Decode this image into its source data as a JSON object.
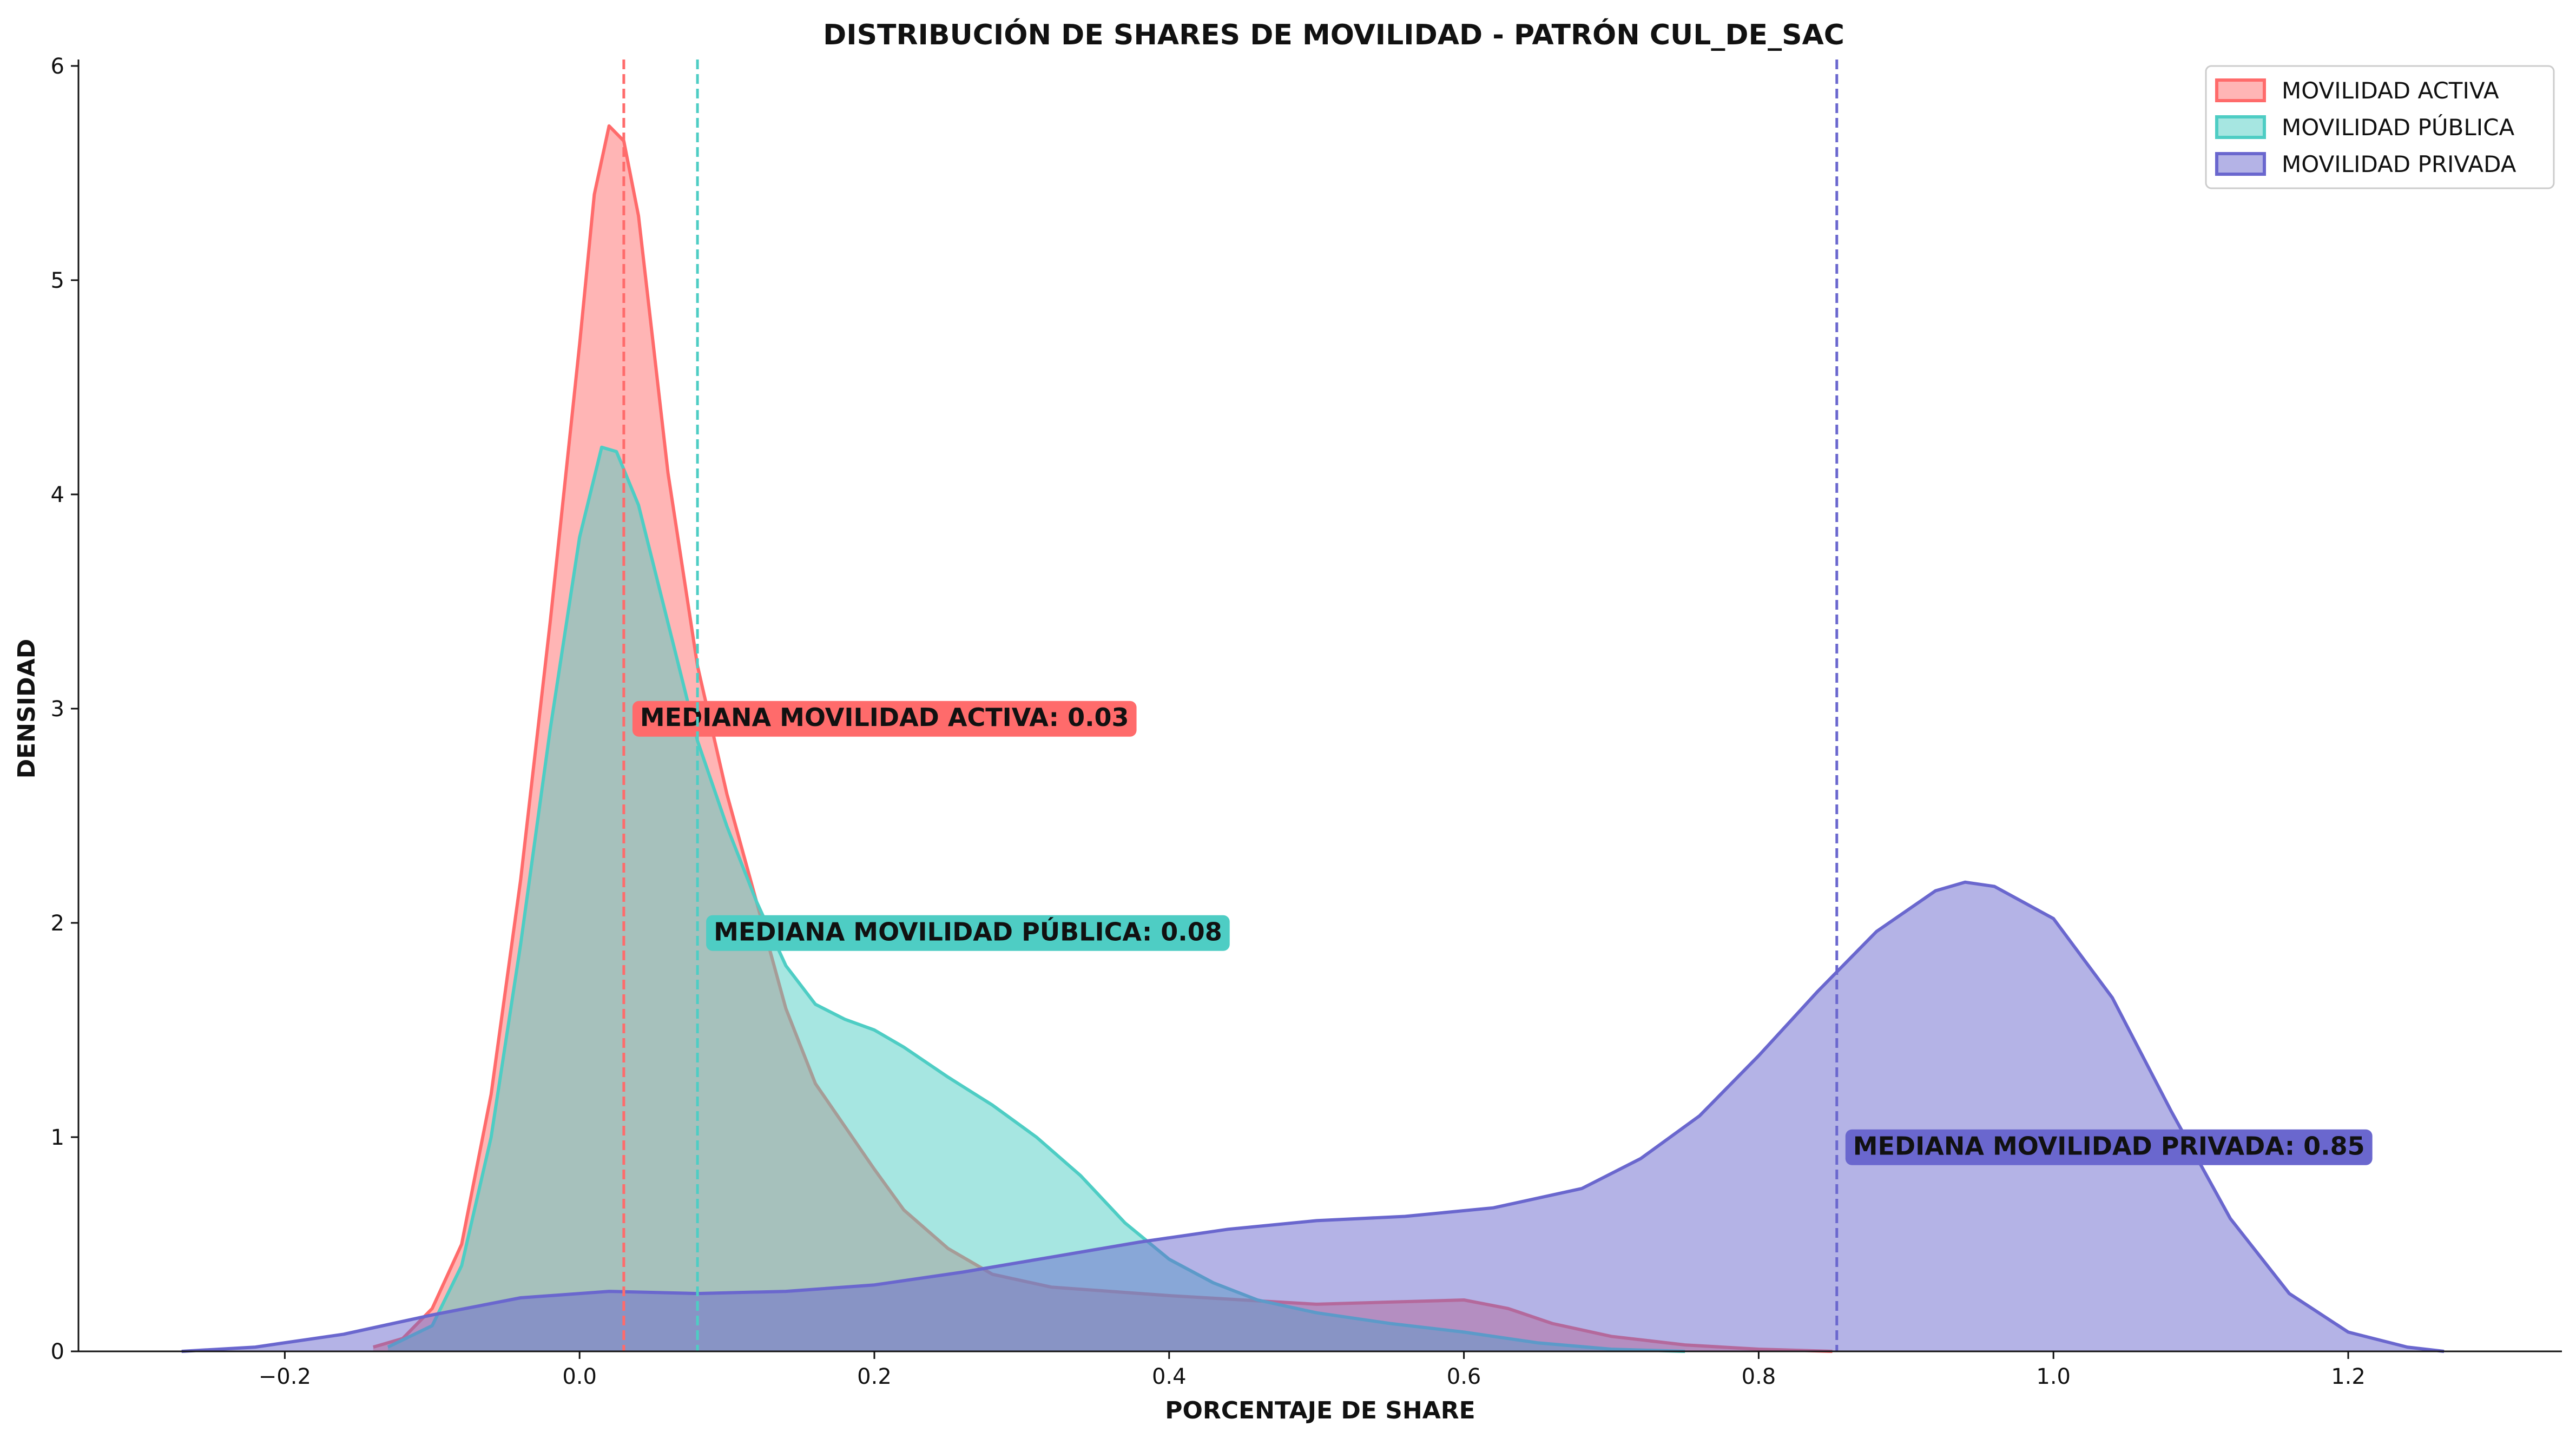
{
  "chart_data": {
    "type": "area",
    "title": "DISTRIBUCIÓN DE SHARES DE MOVILIDAD - PATRÓN CUL_DE_SAC",
    "xlabel": "PORCENTAJE DE SHARE",
    "ylabel": "DENSIDAD",
    "xlim": [
      -0.34,
      1.345
    ],
    "ylim": [
      0,
      6.03
    ],
    "xticks": [
      -0.2,
      0.0,
      0.2,
      0.4,
      0.6,
      0.8,
      1.0,
      1.2
    ],
    "xtick_labels": [
      "−0.2",
      "0.0",
      "0.2",
      "0.4",
      "0.6",
      "0.8",
      "1.0",
      "1.2"
    ],
    "yticks": [
      0,
      1,
      2,
      3,
      4,
      5,
      6
    ],
    "ytick_labels": [
      "0",
      "1",
      "2",
      "3",
      "4",
      "5",
      "6"
    ],
    "grid": false,
    "legend_position": "top-right",
    "series": [
      {
        "name": "MOVILIDAD ACTIVA",
        "color": "#ff6b6b",
        "points": [
          [
            -0.14,
            0.02
          ],
          [
            -0.12,
            0.06
          ],
          [
            -0.1,
            0.2
          ],
          [
            -0.08,
            0.5
          ],
          [
            -0.06,
            1.2
          ],
          [
            -0.04,
            2.2
          ],
          [
            -0.02,
            3.4
          ],
          [
            0.0,
            4.7
          ],
          [
            0.01,
            5.4
          ],
          [
            0.02,
            5.72
          ],
          [
            0.03,
            5.65
          ],
          [
            0.04,
            5.3
          ],
          [
            0.05,
            4.7
          ],
          [
            0.06,
            4.1
          ],
          [
            0.08,
            3.2
          ],
          [
            0.1,
            2.6
          ],
          [
            0.12,
            2.1
          ],
          [
            0.14,
            1.6
          ],
          [
            0.16,
            1.25
          ],
          [
            0.18,
            1.05
          ],
          [
            0.2,
            0.85
          ],
          [
            0.22,
            0.66
          ],
          [
            0.25,
            0.48
          ],
          [
            0.28,
            0.36
          ],
          [
            0.32,
            0.3
          ],
          [
            0.36,
            0.28
          ],
          [
            0.4,
            0.26
          ],
          [
            0.45,
            0.24
          ],
          [
            0.5,
            0.22
          ],
          [
            0.55,
            0.23
          ],
          [
            0.6,
            0.24
          ],
          [
            0.63,
            0.2
          ],
          [
            0.66,
            0.13
          ],
          [
            0.7,
            0.07
          ],
          [
            0.75,
            0.03
          ],
          [
            0.8,
            0.01
          ],
          [
            0.85,
            0.0
          ]
        ],
        "median": 0.03,
        "median_label": "MEDIANA MOVILIDAD ACTIVA: 0.03"
      },
      {
        "name": "MOVILIDAD PÚBLICA",
        "color": "#4ecdc4",
        "points": [
          [
            -0.13,
            0.02
          ],
          [
            -0.1,
            0.12
          ],
          [
            -0.08,
            0.4
          ],
          [
            -0.06,
            1.0
          ],
          [
            -0.04,
            1.9
          ],
          [
            -0.02,
            2.9
          ],
          [
            0.0,
            3.8
          ],
          [
            0.015,
            4.22
          ],
          [
            0.025,
            4.2
          ],
          [
            0.04,
            3.95
          ],
          [
            0.06,
            3.4
          ],
          [
            0.08,
            2.85
          ],
          [
            0.1,
            2.45
          ],
          [
            0.12,
            2.1
          ],
          [
            0.14,
            1.8
          ],
          [
            0.16,
            1.62
          ],
          [
            0.18,
            1.55
          ],
          [
            0.2,
            1.5
          ],
          [
            0.22,
            1.42
          ],
          [
            0.25,
            1.28
          ],
          [
            0.28,
            1.15
          ],
          [
            0.31,
            1.0
          ],
          [
            0.34,
            0.82
          ],
          [
            0.37,
            0.6
          ],
          [
            0.4,
            0.43
          ],
          [
            0.43,
            0.32
          ],
          [
            0.46,
            0.24
          ],
          [
            0.5,
            0.18
          ],
          [
            0.55,
            0.13
          ],
          [
            0.6,
            0.09
          ],
          [
            0.65,
            0.04
          ],
          [
            0.7,
            0.01
          ],
          [
            0.75,
            0.0
          ]
        ],
        "median": 0.08,
        "median_label": "MEDIANA MOVILIDAD PÚBLICA: 0.08"
      },
      {
        "name": "MOVILIDAD PRIVADA",
        "color": "#6a67ce",
        "points": [
          [
            -0.27,
            0.0
          ],
          [
            -0.22,
            0.02
          ],
          [
            -0.16,
            0.08
          ],
          [
            -0.1,
            0.17
          ],
          [
            -0.04,
            0.25
          ],
          [
            0.02,
            0.28
          ],
          [
            0.08,
            0.27
          ],
          [
            0.14,
            0.28
          ],
          [
            0.2,
            0.31
          ],
          [
            0.26,
            0.37
          ],
          [
            0.32,
            0.44
          ],
          [
            0.38,
            0.51
          ],
          [
            0.44,
            0.57
          ],
          [
            0.5,
            0.61
          ],
          [
            0.56,
            0.63
          ],
          [
            0.62,
            0.67
          ],
          [
            0.68,
            0.76
          ],
          [
            0.72,
            0.9
          ],
          [
            0.76,
            1.1
          ],
          [
            0.8,
            1.38
          ],
          [
            0.84,
            1.68
          ],
          [
            0.88,
            1.96
          ],
          [
            0.92,
            2.15
          ],
          [
            0.94,
            2.19
          ],
          [
            0.96,
            2.17
          ],
          [
            1.0,
            2.02
          ],
          [
            1.04,
            1.65
          ],
          [
            1.08,
            1.12
          ],
          [
            1.12,
            0.62
          ],
          [
            1.16,
            0.27
          ],
          [
            1.2,
            0.09
          ],
          [
            1.24,
            0.02
          ],
          [
            1.265,
            0.0
          ]
        ],
        "median": 0.853,
        "median_label": "MEDIANA MOVILIDAD PRIVADA: 0.85"
      }
    ]
  }
}
